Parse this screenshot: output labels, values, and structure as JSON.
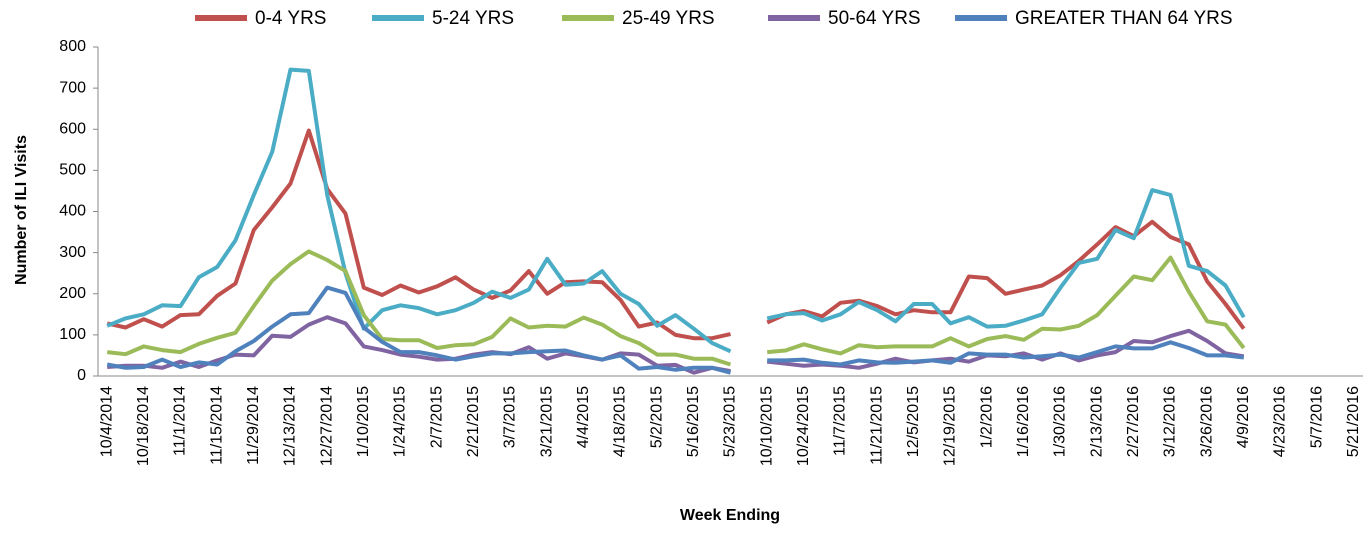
{
  "chart_data": {
    "type": "line",
    "y_label": "Number of ILI Visits",
    "x_label": "Week Ending",
    "categories": [
      "10/4/2014",
      null,
      "10/18/2014",
      null,
      "11/1/2014",
      null,
      "11/15/2014",
      null,
      "11/29/2014",
      null,
      "12/13/2014",
      null,
      "12/27/2014",
      null,
      "1/10/2015",
      null,
      "1/24/2015",
      null,
      "2/7/2015",
      null,
      "2/21/2015",
      null,
      "3/7/2015",
      null,
      "3/21/2015",
      null,
      "4/4/2015",
      null,
      "4/18/2015",
      null,
      "5/2/2015",
      null,
      "5/16/2015",
      null,
      "5/23/2015",
      null,
      "10/10/2015",
      null,
      "10/24/2015",
      null,
      "11/7/2015",
      null,
      "11/21/2015",
      null,
      "12/5/2015",
      null,
      "12/19/2015",
      null,
      "1/2/2016",
      null,
      "1/16/2016",
      null,
      "1/30/2016",
      null,
      "2/13/2016",
      null,
      "2/27/2016",
      null,
      "3/12/2016",
      null,
      "3/26/2016",
      null,
      "4/9/2016",
      null,
      "4/23/2016",
      null,
      "5/7/2016",
      null,
      "5/21/2016"
    ],
    "series": [
      {
        "name": "0-4 YRS",
        "color": "#c0504d",
        "values": [
          128,
          118,
          138,
          120,
          148,
          150,
          195,
          225,
          355,
          410,
          468,
          597,
          455,
          395,
          215,
          197,
          220,
          203,
          218,
          240,
          210,
          190,
          208,
          255,
          200,
          228,
          230,
          228,
          185,
          120,
          130,
          100,
          92,
          92,
          102,
          null,
          130,
          150,
          158,
          145,
          178,
          183,
          170,
          150,
          160,
          155,
          155,
          242,
          238,
          200,
          210,
          220,
          245,
          280,
          320,
          362,
          340,
          375,
          338,
          320,
          230,
          175,
          115,
          null,
          null,
          null,
          null,
          null,
          null
        ]
      },
      {
        "name": "5-24 YRS",
        "color": "#4bacc6",
        "values": [
          122,
          140,
          150,
          172,
          170,
          240,
          265,
          330,
          440,
          545,
          745,
          742,
          440,
          250,
          115,
          160,
          172,
          165,
          150,
          160,
          178,
          205,
          190,
          210,
          285,
          222,
          225,
          255,
          200,
          175,
          122,
          148,
          115,
          80,
          60,
          null,
          140,
          150,
          153,
          135,
          150,
          180,
          160,
          133,
          175,
          175,
          128,
          143,
          120,
          122,
          135,
          150,
          215,
          275,
          285,
          355,
          335,
          452,
          440,
          268,
          255,
          220,
          143,
          null,
          null,
          null,
          null,
          null,
          null
        ]
      },
      {
        "name": "25-49 YRS",
        "color": "#9bbb59",
        "values": [
          58,
          53,
          72,
          63,
          58,
          78,
          93,
          105,
          170,
          232,
          272,
          303,
          282,
          255,
          148,
          90,
          87,
          87,
          68,
          75,
          77,
          95,
          140,
          118,
          122,
          120,
          142,
          125,
          97,
          80,
          52,
          52,
          42,
          42,
          28,
          null,
          58,
          62,
          77,
          65,
          55,
          75,
          70,
          72,
          72,
          72,
          92,
          72,
          90,
          97,
          88,
          115,
          113,
          122,
          148,
          195,
          242,
          233,
          288,
          205,
          133,
          125,
          68,
          null,
          null,
          null,
          null,
          null,
          null
        ]
      },
      {
        "name": "50-64 YRS",
        "color": "#8064a2",
        "values": [
          22,
          25,
          25,
          20,
          35,
          22,
          38,
          52,
          50,
          98,
          95,
          125,
          143,
          128,
          72,
          63,
          52,
          47,
          40,
          42,
          52,
          58,
          53,
          70,
          42,
          55,
          48,
          40,
          55,
          52,
          25,
          27,
          8,
          20,
          12,
          null,
          35,
          30,
          25,
          28,
          25,
          20,
          30,
          42,
          33,
          38,
          42,
          35,
          50,
          48,
          55,
          40,
          55,
          38,
          50,
          58,
          85,
          82,
          97,
          110,
          85,
          55,
          48,
          null,
          null,
          null,
          null,
          null,
          null
        ]
      },
      {
        "name": "GREATER THAN 64 YRS",
        "color": "#4f81bd",
        "values": [
          28,
          20,
          22,
          40,
          22,
          33,
          28,
          60,
          85,
          120,
          150,
          153,
          215,
          202,
          118,
          83,
          58,
          58,
          50,
          40,
          48,
          55,
          55,
          58,
          60,
          62,
          50,
          40,
          50,
          18,
          22,
          15,
          20,
          20,
          8,
          null,
          38,
          38,
          40,
          32,
          28,
          38,
          33,
          32,
          35,
          38,
          32,
          55,
          52,
          52,
          45,
          48,
          52,
          45,
          58,
          72,
          67,
          67,
          82,
          68,
          50,
          50,
          45,
          null,
          null,
          null,
          null,
          null,
          null
        ]
      }
    ],
    "ylim": [
      0,
      800
    ],
    "yticks": [
      0,
      100,
      200,
      300,
      400,
      500,
      600,
      700,
      800
    ]
  }
}
